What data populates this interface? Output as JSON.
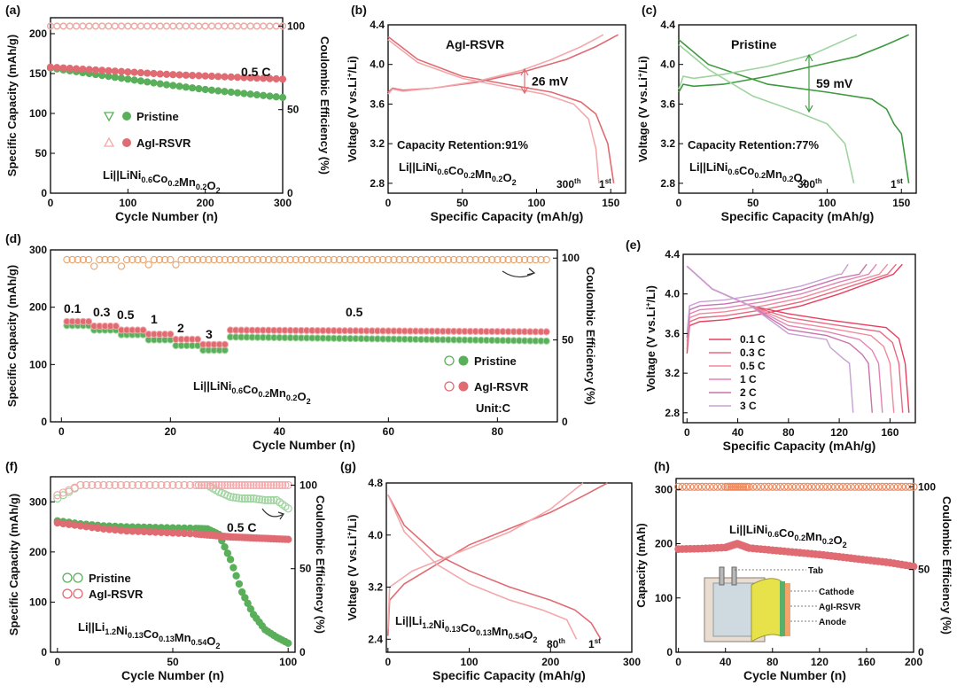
{
  "figure": {
    "panels": [
      {
        "id": "a",
        "label": "(a)",
        "xlabel": "Cycle Number (n)",
        "ylabel": "Specific Capacity (mAh/g)",
        "y2label": "Coulombic Efficiency (%)",
        "note": "0.5 C",
        "legend": [
          "Pristine",
          "AgI-RSVR"
        ],
        "cell": "Li||LiNi0.6Co0.2Mn0.2O2",
        "xticks": [
          "0",
          "100",
          "200",
          "300"
        ],
        "yticks": [
          "0",
          "50",
          "100",
          "150",
          "200"
        ],
        "y2ticks": [
          "0",
          "50",
          "100"
        ]
      },
      {
        "id": "b",
        "label": "(b)",
        "xlabel": "Specific Capacity (mAh/g)",
        "ylabel": "Voltage (V vs.Li+/Li)",
        "title": "AgI-RSVR",
        "gap": "26 mV",
        "retention": "Capacity Retention:91%",
        "cell": "Li||LiNi0.6Co0.2Mn0.2O2",
        "curve_labels": [
          "300th",
          "1st"
        ],
        "xticks": [
          "0",
          "50",
          "100",
          "150"
        ],
        "yticks": [
          "2.8",
          "3.2",
          "3.6",
          "4.0",
          "4.4"
        ]
      },
      {
        "id": "c",
        "label": "(c)",
        "xlabel": "Specific Capacity (mAh/g)",
        "ylabel": "Voltage (V vs.Li+/Li)",
        "title": "Pristine",
        "gap": "59 mV",
        "retention": "Capacity Retention:77%",
        "cell": "Li||LiNi0.6Co0.2Mn0.2O2",
        "curve_labels": [
          "300th",
          "1st"
        ],
        "xticks": [
          "0",
          "50",
          "100",
          "150"
        ],
        "yticks": [
          "2.8",
          "3.2",
          "3.6",
          "4.0",
          "4.4"
        ]
      },
      {
        "id": "d",
        "label": "(d)",
        "xlabel": "Cycle Number (n)",
        "ylabel": "Specific Capacity (mAh/g)",
        "y2label": "Coulombic Efficiency (%)",
        "rates": [
          "0.1",
          "0.3",
          "0.5",
          "1",
          "2",
          "3",
          "0.5"
        ],
        "legend": [
          "Pristine",
          "AgI-RSVR"
        ],
        "unit": "Unit:C",
        "cell": "Li||LiNi0.6Co0.2Mn0.2O2",
        "xticks": [
          "0",
          "20",
          "40",
          "60",
          "80"
        ],
        "yticks": [
          "0",
          "100",
          "200",
          "300"
        ],
        "y2ticks": [
          "0",
          "50",
          "100"
        ]
      },
      {
        "id": "e",
        "label": "(e)",
        "xlabel": "Specific Capacity (mAh/g)",
        "ylabel": "Voltage (V vs.Li+/Li)",
        "legend": [
          "0.1 C",
          "0.3 C",
          "0.5 C",
          "1  C",
          "2  C",
          "3  C"
        ],
        "xticks": [
          "0",
          "40",
          "80",
          "120",
          "160"
        ],
        "yticks": [
          "2.8",
          "3.2",
          "3.6",
          "4.0",
          "4.4"
        ]
      },
      {
        "id": "f",
        "label": "(f)",
        "xlabel": "Cycle Number (n)",
        "ylabel": "Specific Capacity (mAh/g)",
        "y2label": "Coulombic Efficiency (%)",
        "note": "0.5 C",
        "legend": [
          "Pristine",
          "AgI-RSVR"
        ],
        "cell": "Li||Li1.2Ni0.13Co0.13Mn0.54O2",
        "xticks": [
          "0",
          "50",
          "100"
        ],
        "yticks": [
          "0",
          "100",
          "200",
          "300"
        ],
        "y2ticks": [
          "0",
          "50",
          "100"
        ]
      },
      {
        "id": "g",
        "label": "(g)",
        "xlabel": "Specific Capacity (mAh/g)",
        "ylabel": "Voltage (V vs.Li+/Li)",
        "cell": "Li||Li1.2Ni0.13Co0.13Mn0.54O2",
        "curve_labels": [
          "80th",
          "1st"
        ],
        "xticks": [
          "0",
          "100",
          "200",
          "300"
        ],
        "yticks": [
          "2.4",
          "3.2",
          "4.0",
          "4.8"
        ]
      },
      {
        "id": "h",
        "label": "(h)",
        "xlabel": "Cycle Number (n)",
        "ylabel": "Capacity (mAh)",
        "y2label": "Coulombic Efficiency (%)",
        "cell": "Li||LiNi0.6Co0.2Mn0.2O2",
        "inset_labels": [
          "Tab",
          "Cathode",
          "AgI-RSVR",
          "Anode"
        ],
        "xticks": [
          "0",
          "40",
          "80",
          "120",
          "160",
          "200"
        ],
        "yticks": [
          "0",
          "100",
          "200",
          "300"
        ],
        "y2ticks": [
          "0",
          "50",
          "100"
        ]
      }
    ]
  },
  "colors": {
    "green": "#5aaf5a",
    "green_light": "#9fd39f",
    "green_dark": "#3e9a3e",
    "red": "#e06b72",
    "red_light": "#f3a9ac",
    "orange": "#f08a5d"
  },
  "chart_data": [
    {
      "panel": "a",
      "type": "scatter",
      "x": [
        0,
        50,
        100,
        150,
        200,
        250,
        300
      ],
      "series": [
        {
          "name": "Pristine capacity",
          "values": [
            157,
            150,
            143,
            136,
            130,
            125,
            120
          ]
        },
        {
          "name": "AgI-RSVR capacity",
          "values": [
            158,
            155,
            152,
            149,
            147,
            145,
            143
          ]
        },
        {
          "name": "Pristine CE",
          "axis": "right",
          "values": [
            100,
            100,
            100,
            100,
            100,
            100,
            100
          ]
        },
        {
          "name": "AgI-RSVR CE",
          "axis": "right",
          "values": [
            100,
            100,
            100,
            100,
            100,
            100,
            100
          ]
        }
      ],
      "xlim": [
        0,
        300
      ],
      "ylim": [
        0,
        220
      ],
      "y2lim": [
        0,
        105
      ]
    },
    {
      "panel": "b",
      "type": "line",
      "series": [
        {
          "name": "1st charge",
          "x": [
            0,
            3,
            10,
            30,
            60,
            90,
            120,
            140,
            155
          ],
          "y": [
            3.72,
            3.76,
            3.74,
            3.76,
            3.82,
            3.92,
            4.05,
            4.18,
            4.3
          ]
        },
        {
          "name": "1st discharge",
          "x": [
            0,
            20,
            50,
            80,
            110,
            130,
            140,
            148,
            152
          ],
          "y": [
            4.28,
            4.05,
            3.88,
            3.8,
            3.72,
            3.62,
            3.5,
            3.2,
            2.8
          ]
        },
        {
          "name": "300th charge",
          "x": [
            0,
            3,
            10,
            30,
            60,
            90,
            110,
            130,
            145
          ],
          "y": [
            3.7,
            3.75,
            3.73,
            3.76,
            3.83,
            3.94,
            4.05,
            4.18,
            4.3
          ]
        },
        {
          "name": "300th discharge",
          "x": [
            0,
            20,
            50,
            80,
            105,
            125,
            135,
            140,
            142
          ],
          "y": [
            4.25,
            4.02,
            3.86,
            3.77,
            3.7,
            3.6,
            3.45,
            3.15,
            2.8
          ]
        }
      ],
      "xlim": [
        0,
        160
      ],
      "ylim": [
        2.7,
        4.4
      ]
    },
    {
      "panel": "c",
      "type": "line",
      "series": [
        {
          "name": "1st charge",
          "x": [
            0,
            3,
            10,
            30,
            60,
            90,
            120,
            140,
            155
          ],
          "y": [
            3.72,
            3.8,
            3.78,
            3.8,
            3.88,
            3.98,
            4.08,
            4.2,
            4.3
          ]
        },
        {
          "name": "1st discharge",
          "x": [
            0,
            20,
            60,
            100,
            130,
            140,
            145,
            150,
            155
          ],
          "y": [
            4.25,
            4.0,
            3.8,
            3.72,
            3.65,
            3.55,
            3.4,
            3.3,
            2.8
          ]
        },
        {
          "name": "300th charge",
          "x": [
            0,
            3,
            10,
            30,
            60,
            90,
            120
          ],
          "y": [
            3.75,
            3.88,
            3.86,
            3.9,
            3.98,
            4.1,
            4.3
          ]
        },
        {
          "name": "300th discharge",
          "x": [
            0,
            20,
            50,
            80,
            100,
            112,
            118
          ],
          "y": [
            4.2,
            3.95,
            3.68,
            3.52,
            3.4,
            3.2,
            2.8
          ]
        }
      ],
      "xlim": [
        0,
        160
      ],
      "ylim": [
        2.7,
        4.4
      ]
    },
    {
      "panel": "d",
      "type": "scatter",
      "categories": [
        "0.1",
        "0.3",
        "0.5",
        "1",
        "2",
        "3",
        "0.5"
      ],
      "x": [
        1,
        5,
        6,
        10,
        11,
        15,
        16,
        20,
        21,
        25,
        26,
        30,
        31,
        60,
        90
      ],
      "series": [
        {
          "name": "Pristine capacity",
          "values": [
            168,
            168,
            160,
            160,
            152,
            152,
            143,
            143,
            133,
            133,
            125,
            125,
            148,
            145,
            141
          ]
        },
        {
          "name": "AgI-RSVR capacity",
          "values": [
            175,
            175,
            167,
            167,
            160,
            160,
            153,
            153,
            144,
            144,
            135,
            135,
            160,
            158,
            157
          ]
        },
        {
          "name": "Pristine CE",
          "axis": "right",
          "values": [
            97,
            97,
            98,
            98,
            99,
            99,
            99,
            99,
            99,
            99,
            99,
            99,
            99,
            99,
            99
          ]
        },
        {
          "name": "AgI-RSVR CE",
          "axis": "right",
          "values": [
            97,
            97,
            98,
            98,
            99,
            99,
            99,
            99,
            99,
            99,
            99,
            99,
            99,
            99,
            99
          ]
        }
      ],
      "xlim": [
        0,
        90
      ],
      "ylim": [
        0,
        300
      ],
      "y2lim": [
        0,
        105
      ]
    },
    {
      "panel": "e",
      "type": "line",
      "series": [
        {
          "name": "0.1 C",
          "capacity": 175
        },
        {
          "name": "0.3 C",
          "capacity": 170
        },
        {
          "name": "0.5 C",
          "capacity": 163
        },
        {
          "name": "1  C",
          "capacity": 154
        },
        {
          "name": "2  C",
          "capacity": 146
        },
        {
          "name": "3  C",
          "capacity": 131
        }
      ],
      "xlim": [
        0,
        180
      ],
      "ylim": [
        2.7,
        4.4
      ]
    },
    {
      "panel": "f",
      "type": "scatter",
      "x": [
        0,
        10,
        20,
        30,
        40,
        50,
        60,
        65,
        70,
        75,
        80,
        85,
        90,
        95,
        100
      ],
      "series": [
        {
          "name": "Pristine capacity",
          "values": [
            262,
            256,
            252,
            250,
            249,
            248,
            247,
            246,
            235,
            185,
            120,
            75,
            45,
            30,
            18
          ]
        },
        {
          "name": "AgI-RSVR capacity",
          "values": [
            258,
            252,
            246,
            242,
            240,
            238,
            236,
            234,
            232,
            230,
            229,
            228,
            227,
            226,
            225
          ]
        },
        {
          "name": "Pristine CE",
          "axis": "right",
          "values": [
            92,
            100,
            100,
            100,
            100,
            100,
            100,
            100,
            96,
            93,
            92,
            92,
            91,
            91,
            86
          ]
        },
        {
          "name": "AgI-RSVR CE",
          "axis": "right",
          "values": [
            94,
            100,
            100,
            100,
            100,
            100,
            100,
            100,
            100,
            100,
            100,
            100,
            100,
            100,
            100
          ]
        }
      ],
      "xlim": [
        0,
        100
      ],
      "ylim": [
        0,
        350
      ],
      "y2lim": [
        0,
        105
      ]
    },
    {
      "panel": "g",
      "type": "line",
      "series": [
        {
          "name": "1st charge",
          "x": [
            0,
            2,
            20,
            60,
            100,
            150,
            200,
            240,
            270
          ],
          "y": [
            2.45,
            3.0,
            3.25,
            3.55,
            3.85,
            4.1,
            4.35,
            4.6,
            4.8
          ]
        },
        {
          "name": "1st discharge",
          "x": [
            0,
            20,
            60,
            100,
            150,
            200,
            230,
            250,
            262
          ],
          "y": [
            4.62,
            4.15,
            3.7,
            3.45,
            3.2,
            3.0,
            2.85,
            2.65,
            2.4
          ]
        },
        {
          "name": "80th charge",
          "x": [
            0,
            2,
            30,
            60,
            100,
            150,
            200,
            240
          ],
          "y": [
            2.55,
            3.2,
            3.45,
            3.6,
            3.8,
            4.05,
            4.4,
            4.8
          ]
        },
        {
          "name": "80th discharge",
          "x": [
            0,
            20,
            60,
            100,
            150,
            190,
            220,
            232
          ],
          "y": [
            4.62,
            4.05,
            3.55,
            3.25,
            3.0,
            2.85,
            2.7,
            2.4
          ]
        }
      ],
      "xlim": [
        0,
        300
      ],
      "ylim": [
        2.2,
        4.8
      ]
    },
    {
      "panel": "h",
      "type": "scatter",
      "x": [
        0,
        20,
        40,
        50,
        60,
        80,
        100,
        120,
        140,
        160,
        180,
        200
      ],
      "series": [
        {
          "name": "Capacity",
          "values": [
            190,
            191,
            193,
            200,
            192,
            188,
            184,
            180,
            175,
            170,
            165,
            158
          ]
        },
        {
          "name": "CE",
          "axis": "right",
          "values": [
            100,
            100,
            100,
            100,
            100,
            100,
            100,
            100,
            100,
            100,
            100,
            100
          ]
        }
      ],
      "xlim": [
        0,
        200
      ],
      "ylim": [
        0,
        320
      ],
      "y2lim": [
        0,
        105
      ]
    }
  ]
}
